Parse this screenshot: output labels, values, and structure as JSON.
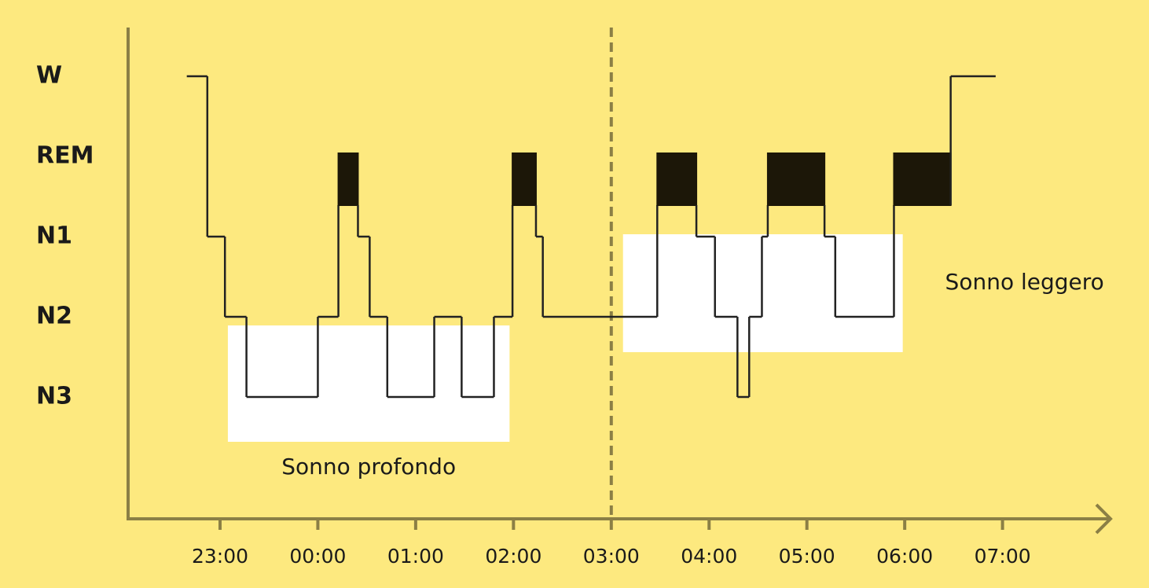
{
  "chart_data": {
    "type": "hypnogram",
    "stages": [
      "W",
      "REM",
      "N1",
      "N2",
      "N3"
    ],
    "x": [
      22.66,
      22.87,
      23.05,
      23.27,
      24.0,
      24.21,
      24.41,
      24.53,
      24.71,
      25.19,
      25.47,
      25.8,
      25.99,
      26.23,
      26.3,
      27.47,
      27.87,
      28.06,
      28.29,
      28.41,
      28.54,
      28.6,
      29.18,
      29.29,
      29.89,
      30.47,
      30.93
    ],
    "values": [
      "W",
      "N1",
      "N2",
      "N3",
      "N2",
      "REM",
      "N1",
      "N2",
      "N3",
      "N2",
      "N3",
      "N2",
      "REM",
      "N1",
      "N2",
      "REM",
      "N1",
      "N2",
      "N3",
      "N2",
      "N1",
      "REM",
      "N1",
      "N2",
      "REM",
      "W",
      "W"
    ],
    "xlim": [
      22.06,
      32.12
    ],
    "xticks": [
      {
        "value": 23,
        "label": "23:00"
      },
      {
        "value": 24,
        "label": "00:00"
      },
      {
        "value": 25,
        "label": "01:00"
      },
      {
        "value": 26,
        "label": "02:00"
      },
      {
        "value": 27,
        "label": "03:00"
      },
      {
        "value": 28,
        "label": "04:00"
      },
      {
        "value": 29,
        "label": "05:00"
      },
      {
        "value": 30,
        "label": "06:00"
      },
      {
        "value": 31,
        "label": "07:00"
      }
    ],
    "divider_x": 27,
    "annotations": [
      {
        "label": "Sonno profondo",
        "x": [
          23.08,
          25.96
        ],
        "stages": [
          "N2",
          "N3"
        ]
      },
      {
        "label": "Sonno leggero",
        "x": [
          27.12,
          29.98
        ],
        "stages": [
          "N1",
          "N2"
        ]
      }
    ]
  }
}
